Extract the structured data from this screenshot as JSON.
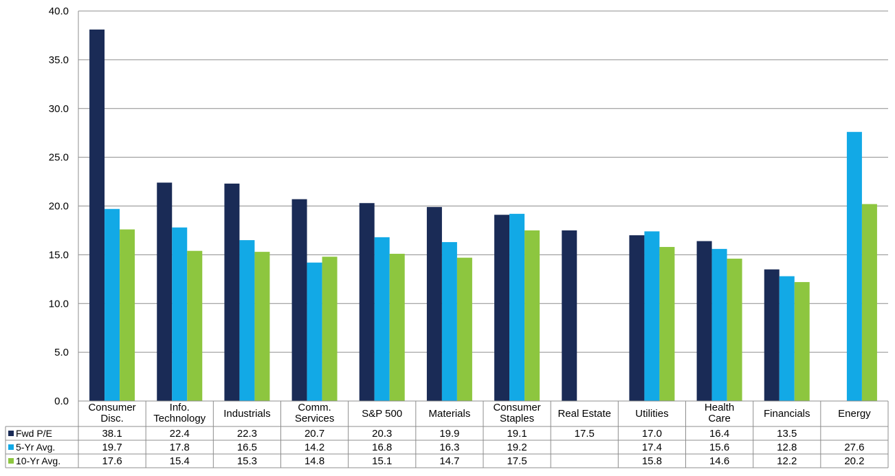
{
  "chart_data": {
    "type": "bar",
    "title": "",
    "xlabel": "",
    "ylabel": "",
    "ylim": [
      0,
      40
    ],
    "yticks": [
      0,
      5,
      10,
      15,
      20,
      25,
      30,
      35,
      40
    ],
    "ytick_labels": [
      "0.0",
      "5.0",
      "10.0",
      "15.0",
      "20.0",
      "25.0",
      "30.0",
      "35.0",
      "40.0"
    ],
    "grid": true,
    "legend": "data-table-rows",
    "categories": [
      [
        "Consumer",
        "Disc."
      ],
      [
        "Info.",
        "Technology"
      ],
      [
        "Industrials"
      ],
      [
        "Comm.",
        "Services"
      ],
      [
        "S&P 500"
      ],
      [
        "Materials"
      ],
      [
        "Consumer",
        "Staples"
      ],
      [
        "Real Estate"
      ],
      [
        "Utilities"
      ],
      [
        "Health",
        "Care"
      ],
      [
        "Financials"
      ],
      [
        "Energy"
      ]
    ],
    "series": [
      {
        "name": "Fwd P/E",
        "color": "#1a2b56",
        "values": [
          38.1,
          22.4,
          22.3,
          20.7,
          20.3,
          19.9,
          19.1,
          17.5,
          17.0,
          16.4,
          13.5,
          null
        ],
        "labels": [
          "38.1",
          "22.4",
          "22.3",
          "20.7",
          "20.3",
          "19.9",
          "19.1",
          "17.5",
          "17.0",
          "16.4",
          "13.5",
          ""
        ]
      },
      {
        "name": "5-Yr Avg.",
        "color": "#12a9e6",
        "values": [
          19.7,
          17.8,
          16.5,
          14.2,
          16.8,
          16.3,
          19.2,
          null,
          17.4,
          15.6,
          12.8,
          27.6
        ],
        "labels": [
          "19.7",
          "17.8",
          "16.5",
          "14.2",
          "16.8",
          "16.3",
          "19.2",
          "",
          "17.4",
          "15.6",
          "12.8",
          "27.6"
        ]
      },
      {
        "name": "10-Yr Avg.",
        "color": "#8dc63f",
        "values": [
          17.6,
          15.4,
          15.3,
          14.8,
          15.1,
          14.7,
          17.5,
          null,
          15.8,
          14.6,
          12.2,
          20.2
        ],
        "labels": [
          "17.6",
          "15.4",
          "15.3",
          "14.8",
          "15.1",
          "14.7",
          "17.5",
          "",
          "15.8",
          "14.6",
          "12.2",
          "20.2"
        ]
      }
    ]
  }
}
